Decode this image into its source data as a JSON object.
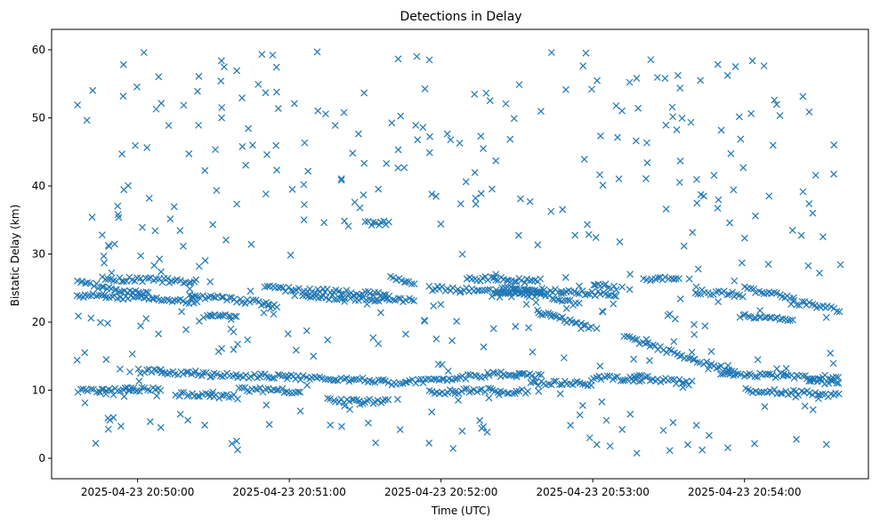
{
  "chart_data": {
    "type": "scatter",
    "title": "Detections in Delay",
    "xlabel": "Time (UTC)",
    "ylabel": "Bistatic Delay (km)",
    "marker": "x",
    "color": "#1f77b4",
    "grid": false,
    "x_start": "2025-04-23 20:49:36",
    "x_end": "2025-04-23 20:54:38",
    "xlim": [
      "2025-04-23 20:49:26",
      "2025-04-23 20:54:49"
    ],
    "ylim": [
      -3,
      63
    ],
    "x_ticks": [
      "2025-04-23 20:50:00",
      "2025-04-23 20:51:00",
      "2025-04-23 20:52:00",
      "2025-04-23 20:53:00",
      "2025-04-23 20:54:00"
    ],
    "y_ticks": [
      0,
      10,
      20,
      30,
      40,
      50,
      60
    ],
    "tracks": [
      {
        "x0": "2025-04-23 20:49:36",
        "x1": "2025-04-23 20:50:05",
        "y0": 25.8,
        "y1": 24.0
      },
      {
        "x0": "2025-04-23 20:49:36",
        "x1": "2025-04-23 20:50:24",
        "y0": 24.0,
        "y1": 23.0
      },
      {
        "x0": "2025-04-23 20:49:46",
        "x1": "2025-04-23 20:50:24",
        "y0": 26.4,
        "y1": 26.0
      },
      {
        "x0": "2025-04-23 20:50:20",
        "x1": "2025-04-23 20:50:56",
        "y0": 24.0,
        "y1": 22.5
      },
      {
        "x0": "2025-04-23 20:50:26",
        "x1": "2025-04-23 20:50:40",
        "y0": 20.8,
        "y1": 20.8
      },
      {
        "x0": "2025-04-23 20:50:50",
        "x1": "2025-04-23 20:51:40",
        "y0": 25.0,
        "y1": 24.0
      },
      {
        "x0": "2025-04-23 20:51:05",
        "x1": "2025-04-23 20:51:50",
        "y0": 23.8,
        "y1": 23.2
      },
      {
        "x0": "2025-04-23 20:51:30",
        "x1": "2025-04-23 20:51:40",
        "y0": 34.6,
        "y1": 34.6
      },
      {
        "x0": "2025-04-23 20:51:40",
        "x1": "2025-04-23 20:51:50",
        "y0": 26.4,
        "y1": 25.6
      },
      {
        "x0": "2025-04-23 20:51:55",
        "x1": "2025-04-23 20:52:37",
        "y0": 25.0,
        "y1": 24.5
      },
      {
        "x0": "2025-04-23 20:52:10",
        "x1": "2025-04-23 20:52:40",
        "y0": 26.5,
        "y1": 26.0
      },
      {
        "x0": "2025-04-23 20:52:20",
        "x1": "2025-04-23 20:52:40",
        "y0": 24.0,
        "y1": 24.0
      },
      {
        "x0": "2025-04-23 20:52:24",
        "x1": "2025-04-23 20:53:10",
        "y0": 25.0,
        "y1": 24.0
      },
      {
        "x0": "2025-04-23 20:52:35",
        "x1": "2025-04-23 20:52:55",
        "y0": 24.5,
        "y1": 22.5
      },
      {
        "x0": "2025-04-23 20:52:38",
        "x1": "2025-04-23 20:53:00",
        "y0": 21.5,
        "y1": 19.2
      },
      {
        "x0": "2025-04-23 20:53:00",
        "x1": "2025-04-23 20:53:10",
        "y0": 25.5,
        "y1": 25.0
      },
      {
        "x0": "2025-04-23 20:53:20",
        "x1": "2025-04-23 20:53:35",
        "y0": 26.3,
        "y1": 26.3
      },
      {
        "x0": "2025-04-23 20:53:40",
        "x1": "2025-04-23 20:54:00",
        "y0": 24.5,
        "y1": 24.0
      },
      {
        "x0": "2025-04-23 20:53:58",
        "x1": "2025-04-23 20:54:20",
        "y0": 21.0,
        "y1": 20.5
      },
      {
        "x0": "2025-04-23 20:54:00",
        "x1": "2025-04-23 20:54:20",
        "y0": 25.0,
        "y1": 23.5
      },
      {
        "x0": "2025-04-23 20:54:18",
        "x1": "2025-04-23 20:54:38",
        "y0": 23.0,
        "y1": 21.8
      },
      {
        "x0": "2025-04-23 20:49:36",
        "x1": "2025-04-23 20:50:00",
        "y0": 10.0,
        "y1": 10.1
      },
      {
        "x0": "2025-04-23 20:49:55",
        "x1": "2025-04-23 20:50:10",
        "y0": 10.0,
        "y1": 10.2
      },
      {
        "x0": "2025-04-23 20:50:00",
        "x1": "2025-04-23 20:50:25",
        "y0": 12.8,
        "y1": 12.5
      },
      {
        "x0": "2025-04-23 20:50:15",
        "x1": "2025-04-23 20:50:40",
        "y0": 9.5,
        "y1": 9.0
      },
      {
        "x0": "2025-04-23 20:50:25",
        "x1": "2025-04-23 20:50:55",
        "y0": 12.3,
        "y1": 12.0
      },
      {
        "x0": "2025-04-23 20:50:40",
        "x1": "2025-04-23 20:51:05",
        "y0": 10.2,
        "y1": 9.8
      },
      {
        "x0": "2025-04-23 20:50:55",
        "x1": "2025-04-23 20:51:40",
        "y0": 12.0,
        "y1": 11.3
      },
      {
        "x0": "2025-04-23 20:51:15",
        "x1": "2025-04-23 20:51:40",
        "y0": 8.5,
        "y1": 8.3
      },
      {
        "x0": "2025-04-23 20:51:40",
        "x1": "2025-04-23 20:52:20",
        "y0": 11.0,
        "y1": 12.3
      },
      {
        "x0": "2025-04-23 20:51:55",
        "x1": "2025-04-23 20:52:15",
        "y0": 9.6,
        "y1": 10.0
      },
      {
        "x0": "2025-04-23 20:52:20",
        "x1": "2025-04-23 20:52:40",
        "y0": 12.3,
        "y1": 12.0
      },
      {
        "x0": "2025-04-23 20:52:15",
        "x1": "2025-04-23 20:52:35",
        "y0": 10.0,
        "y1": 9.8
      },
      {
        "x0": "2025-04-23 20:52:35",
        "x1": "2025-04-23 20:53:00",
        "y0": 11.0,
        "y1": 11.0
      },
      {
        "x0": "2025-04-23 20:53:00",
        "x1": "2025-04-23 20:53:20",
        "y0": 12.0,
        "y1": 11.5
      },
      {
        "x0": "2025-04-23 20:53:12",
        "x1": "2025-04-23 20:53:57",
        "y0": 17.8,
        "y1": 12.5
      },
      {
        "x0": "2025-04-23 20:53:15",
        "x1": "2025-04-23 20:53:40",
        "y0": 12.0,
        "y1": 11.0
      },
      {
        "x0": "2025-04-23 20:53:50",
        "x1": "2025-04-23 20:54:38",
        "y0": 12.5,
        "y1": 11.8
      },
      {
        "x0": "2025-04-23 20:54:00",
        "x1": "2025-04-23 20:54:38",
        "y0": 10.0,
        "y1": 9.3
      },
      {
        "x0": "2025-04-23 20:54:25",
        "x1": "2025-04-23 20:54:38",
        "y0": 11.5,
        "y1": 11.0
      }
    ],
    "track_points_per_second": 0.95,
    "scatter_points": 430,
    "scatter_y_range": [
      0.5,
      60
    ]
  }
}
